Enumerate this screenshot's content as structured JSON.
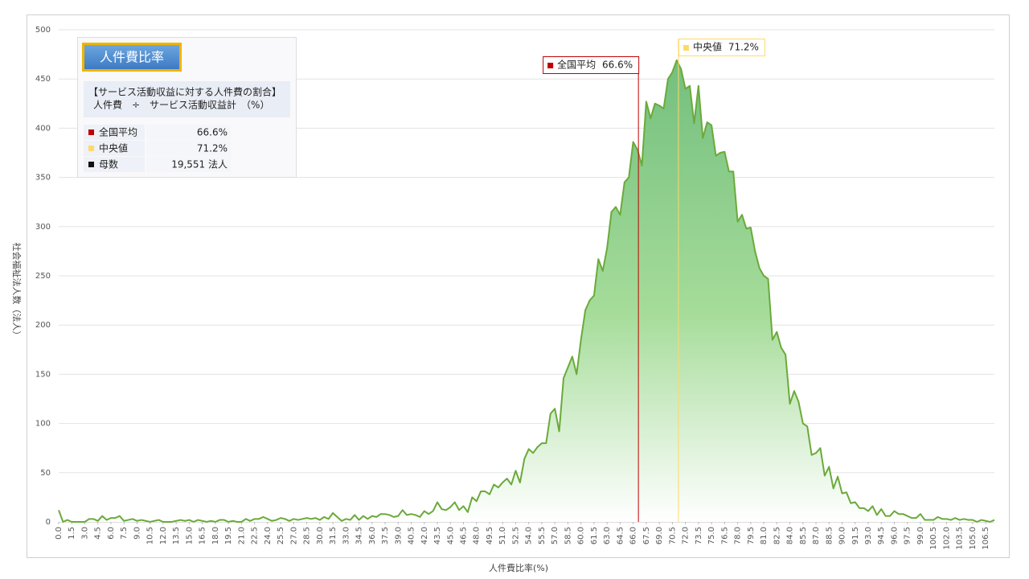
{
  "chart_data": {
    "type": "area",
    "x_label": "人件費比率(%)",
    "y_label": "社会福祉法人数（法人）",
    "color": "#6aaa3a",
    "fill_color": "#74bf7e",
    "grid": true,
    "xlim": [
      0,
      107.5
    ],
    "ylim": [
      0,
      500
    ],
    "yticks": [
      0,
      50,
      100,
      150,
      200,
      250,
      300,
      350,
      400,
      450,
      500
    ],
    "xticks": [
      {
        "value": 0,
        "label": "0.0"
      },
      1.5,
      {
        "value": 3,
        "label": "3.0"
      },
      4.5,
      {
        "value": 6,
        "label": "6.0"
      },
      7.5,
      {
        "value": 9,
        "label": "9.0"
      },
      10.5,
      {
        "value": 12,
        "label": "12.0"
      },
      13.5,
      {
        "value": 15,
        "label": "15.0"
      },
      16.5,
      {
        "value": 18,
        "label": "18.0"
      },
      19.5,
      {
        "value": 21,
        "label": "21.0"
      },
      22.5,
      {
        "value": 24,
        "label": "24.0"
      },
      25.5,
      {
        "value": 27,
        "label": "27.0"
      },
      28.5,
      {
        "value": 30,
        "label": "30.0"
      },
      31.5,
      {
        "value": 33,
        "label": "33.0"
      },
      34.5,
      {
        "value": 36,
        "label": "36.0"
      },
      37.5,
      {
        "value": 39,
        "label": "39.0"
      },
      40.5,
      {
        "value": 42,
        "label": "42.0"
      },
      43.5,
      {
        "value": 45,
        "label": "45.0"
      },
      46.5,
      {
        "value": 48,
        "label": "48.0"
      },
      49.5,
      {
        "value": 51,
        "label": "51.0"
      },
      52.5,
      {
        "value": 54,
        "label": "54.0"
      },
      55.5,
      {
        "value": 57,
        "label": "57.0"
      },
      58.5,
      {
        "value": 60,
        "label": "60.0"
      },
      61.5,
      {
        "value": 63,
        "label": "63.0"
      },
      64.5,
      {
        "value": 66,
        "label": "66.0"
      },
      67.5,
      {
        "value": 69,
        "label": "69.0"
      },
      70.5,
      {
        "value": 72,
        "label": "72.0"
      },
      73.5,
      {
        "value": 75,
        "label": "75.0"
      },
      76.5,
      {
        "value": 78,
        "label": "78.0"
      },
      79.5,
      {
        "value": 81,
        "label": "81.0"
      },
      82.5,
      {
        "value": 84,
        "label": "84.0"
      },
      85.5,
      {
        "value": 87,
        "label": "87.0"
      },
      88.5,
      {
        "value": 90,
        "label": "90.0"
      },
      91.5,
      {
        "value": 93,
        "label": "93.0"
      },
      94.5,
      {
        "value": 96,
        "label": "96.0"
      },
      97.5,
      {
        "value": 99,
        "label": "99.0"
      },
      100.5,
      {
        "value": 102,
        "label": "102.0"
      },
      103.5,
      {
        "value": 105,
        "label": "105.0"
      },
      106.5
    ],
    "x": [
      0,
      0.5,
      1,
      1.5,
      2,
      2.5,
      3,
      3.5,
      4,
      4.5,
      5,
      5.5,
      6,
      6.5,
      7,
      7.5,
      8,
      8.5,
      9,
      9.5,
      10,
      10.5,
      11,
      11.5,
      12,
      12.5,
      13,
      13.5,
      14,
      14.5,
      15,
      15.5,
      16,
      16.5,
      17,
      17.5,
      18,
      18.5,
      19,
      19.5,
      20,
      20.5,
      21,
      21.5,
      22,
      22.5,
      23,
      23.5,
      24,
      24.5,
      25,
      25.5,
      26,
      26.5,
      27,
      27.5,
      28,
      28.5,
      29,
      29.5,
      30,
      30.5,
      31,
      31.5,
      32,
      32.5,
      33,
      33.5,
      34,
      34.5,
      35,
      35.5,
      36,
      36.5,
      37,
      37.5,
      38,
      38.5,
      39,
      39.5,
      40,
      40.5,
      41,
      41.5,
      42,
      42.5,
      43,
      43.5,
      44,
      44.5,
      45,
      45.5,
      46,
      46.5,
      47,
      47.5,
      48,
      48.5,
      49,
      49.5,
      50,
      50.5,
      51,
      51.5,
      52,
      52.5,
      53,
      53.5,
      54,
      54.5,
      55,
      55.5,
      56,
      56.5,
      57,
      57.5,
      58,
      58.5,
      59,
      59.5,
      60,
      60.5,
      61,
      61.5,
      62,
      62.5,
      63,
      63.5,
      64,
      64.5,
      65,
      65.5,
      66,
      66.5,
      67,
      67.5,
      68,
      68.5,
      69,
      69.5,
      70,
      70.5,
      71,
      71.5,
      72,
      72.5,
      73,
      73.5,
      74,
      74.5,
      75,
      75.5,
      76,
      76.5,
      77,
      77.5,
      78,
      78.5,
      79,
      79.5,
      80,
      80.5,
      81,
      81.5,
      82,
      82.5,
      83,
      83.5,
      84,
      84.5,
      85,
      85.5,
      86,
      86.5,
      87,
      87.5,
      88,
      88.5,
      89,
      89.5,
      90,
      90.5,
      91,
      91.5,
      92,
      92.5,
      93,
      93.5,
      94,
      94.5,
      95,
      95.5,
      96,
      96.5,
      97,
      97.5,
      98,
      98.5,
      99,
      99.5,
      100,
      100.5,
      101,
      101.5,
      102,
      102.5,
      103,
      103.5,
      104,
      104.5,
      105,
      105.5,
      106,
      106.5,
      107,
      107.5
    ],
    "values": [
      12,
      0,
      2,
      0,
      0,
      0,
      0,
      3,
      3,
      1,
      6,
      2,
      4,
      4,
      6,
      1,
      2,
      3,
      1,
      2,
      1,
      0,
      1,
      2,
      0,
      0,
      0,
      1,
      2,
      1,
      2,
      0,
      2,
      1,
      0,
      1,
      0,
      2,
      2,
      0,
      1,
      0,
      0,
      3,
      1,
      3,
      3,
      5,
      3,
      1,
      2,
      4,
      3,
      1,
      3,
      2,
      3,
      4,
      3,
      4,
      2,
      5,
      3,
      9,
      5,
      1,
      3,
      2,
      7,
      2,
      6,
      3,
      6,
      5,
      8,
      8,
      7,
      5,
      6,
      12,
      7,
      8,
      7,
      5,
      11,
      8,
      11,
      20,
      13,
      12,
      15,
      20,
      12,
      16,
      10,
      25,
      21,
      31,
      31,
      28,
      38,
      35,
      40,
      44,
      38,
      52,
      40,
      64,
      74,
      70,
      76,
      80,
      80,
      110,
      115,
      92,
      146,
      157,
      168,
      150,
      185,
      215,
      225,
      230,
      267,
      255,
      278,
      315,
      320,
      312,
      345,
      350,
      386,
      378,
      362,
      427,
      410,
      425,
      423,
      420,
      450,
      457,
      469,
      460,
      440,
      443,
      405,
      443,
      390,
      406,
      403,
      372,
      375,
      376,
      356,
      356,
      305,
      312,
      298,
      299,
      275,
      258,
      250,
      247,
      185,
      193,
      177,
      170,
      120,
      133,
      122,
      100,
      97,
      68,
      70,
      75,
      47,
      56,
      34,
      46,
      29,
      30,
      19,
      20,
      14,
      14,
      11,
      16,
      7,
      13,
      6,
      6,
      11,
      8,
      8,
      6,
      4,
      4,
      8,
      2,
      2,
      2,
      5,
      3,
      3,
      2,
      4,
      2,
      3,
      2,
      2,
      0,
      2,
      1,
      0,
      2
    ],
    "reference_lines": [
      {
        "name": "全国平均",
        "value": 66.6,
        "value_label": "66.6%",
        "color": "#c00000"
      },
      {
        "name": "中央値",
        "value": 71.2,
        "value_label": "71.2%",
        "color": "#ffd966"
      }
    ],
    "info_box": {
      "title": "人件費比率",
      "description": [
        "【サービス活動収益に対する人件費の割合】",
        "人件費　÷　サービス活動収益計　（%）"
      ],
      "count_name": "母数",
      "count_value": 19551,
      "count_label": "19,551 法人"
    }
  }
}
